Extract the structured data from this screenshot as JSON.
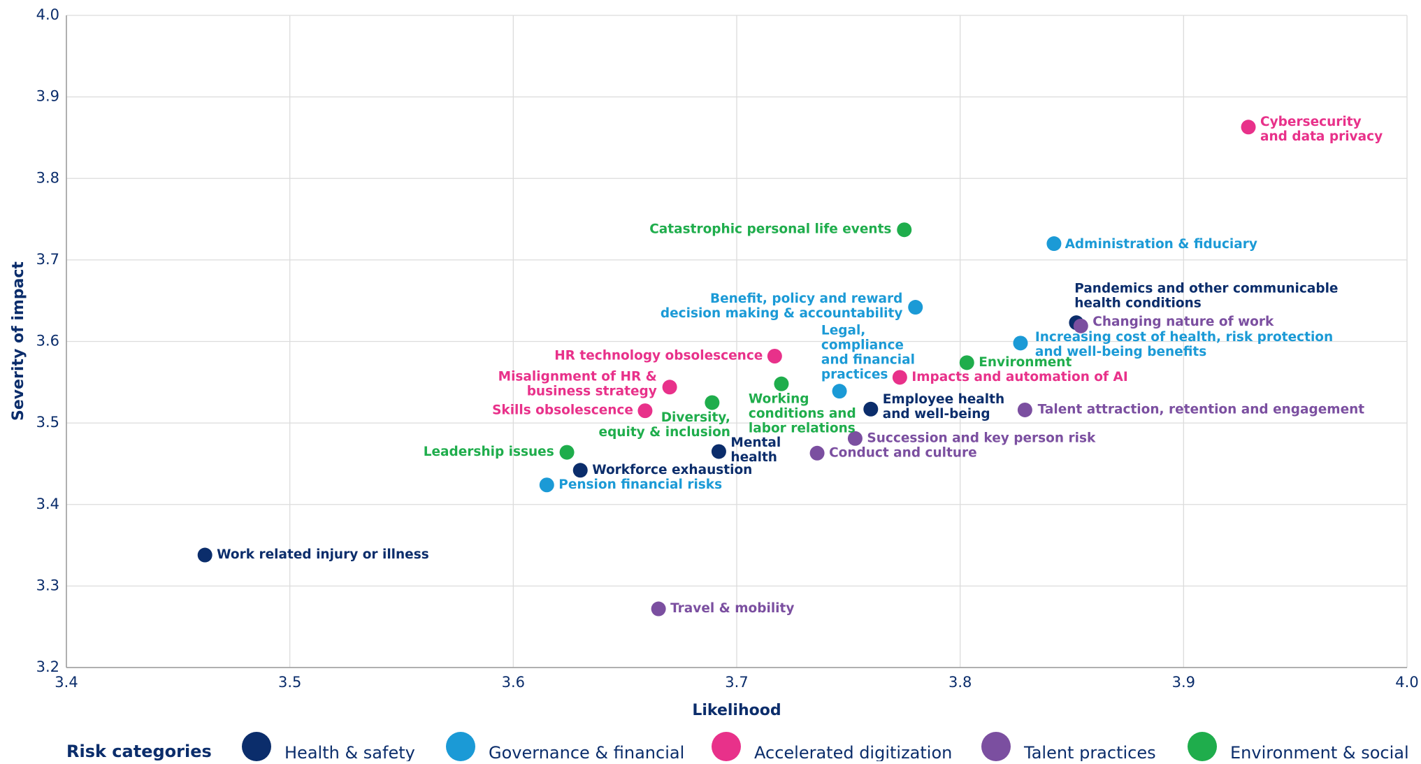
{
  "chart_data": {
    "type": "scatter",
    "x_label": "Likelihood",
    "y_label": "Severity of impact",
    "legend_title": "Risk categories",
    "xlim": [
      3.4,
      4.0
    ],
    "ylim": [
      3.2,
      4.0
    ],
    "xticks": [
      3.4,
      3.5,
      3.6,
      3.7,
      3.8,
      3.9,
      {
        "value": 4.0,
        "label": "4.0"
      }
    ],
    "yticks": [
      3.2,
      3.3,
      3.4,
      3.5,
      3.6,
      3.7,
      3.8,
      3.9,
      {
        "value": 4.0,
        "label": "4.0"
      }
    ],
    "grid": true,
    "series": [
      {
        "name": "Health & safety",
        "color": "#0b2d6b",
        "x": [
          3.852,
          3.76,
          3.692,
          3.63,
          3.462
        ],
        "values": [
          3.623,
          3.517,
          3.465,
          3.442,
          3.338
        ],
        "labels": [
          [
            "Pandemics and other communicable",
            "health conditions"
          ],
          [
            "Employee health",
            "and well-being"
          ],
          [
            "Mental",
            "health"
          ],
          [
            "Workforce exhaustion"
          ],
          [
            "Work related injury or illness"
          ]
        ]
      },
      {
        "name": "Governance & financial",
        "color": "#1b9ad6",
        "x": [
          3.842,
          3.78,
          3.827,
          3.746,
          3.615
        ],
        "values": [
          3.72,
          3.642,
          3.598,
          3.539,
          3.424
        ],
        "labels": [
          [
            "Administration & fiduciary"
          ],
          [
            "Benefit, policy and reward",
            "decision making & accountability"
          ],
          [
            "Increasing cost of health, risk protection",
            "and well-being benefits"
          ],
          [
            "Legal,",
            "compliance",
            "and financial",
            "practices"
          ],
          [
            "Pension financial risks"
          ]
        ]
      },
      {
        "name": "Accelerated digitization",
        "color": "#e8318a",
        "x": [
          3.929,
          3.717,
          3.773,
          3.67,
          3.659
        ],
        "values": [
          3.863,
          3.582,
          3.556,
          3.544,
          3.515
        ],
        "labels": [
          [
            "Cybersecurity",
            "and data privacy"
          ],
          [
            "HR technology obsolescence"
          ],
          [
            "Impacts and automation of AI"
          ],
          [
            "Misalignment of HR &",
            "business strategy"
          ],
          [
            "Skills obsolescence"
          ]
        ]
      },
      {
        "name": "Talent practices",
        "color": "#7b4fa0",
        "x": [
          3.854,
          3.829,
          3.753,
          3.736,
          3.665
        ],
        "values": [
          3.619,
          3.516,
          3.481,
          3.463,
          3.272
        ],
        "labels": [
          [
            "Changing nature of work"
          ],
          [
            "Talent attraction, retention and engagement"
          ],
          [
            "Succession and key person risk"
          ],
          [
            "Conduct and culture"
          ],
          [
            "Travel & mobility"
          ]
        ]
      },
      {
        "name": "Environment & social",
        "color": "#1fad4c",
        "x": [
          3.775,
          3.803,
          3.72,
          3.689,
          3.624
        ],
        "values": [
          3.737,
          3.574,
          3.548,
          3.525,
          3.464
        ],
        "labels": [
          [
            "Catastrophic personal life events"
          ],
          [
            "Environment"
          ],
          [
            "Working",
            "conditions and",
            "labor relations"
          ],
          [
            "Diversity,",
            "equity & inclusion"
          ],
          [
            "Leadership issues"
          ]
        ]
      }
    ]
  }
}
